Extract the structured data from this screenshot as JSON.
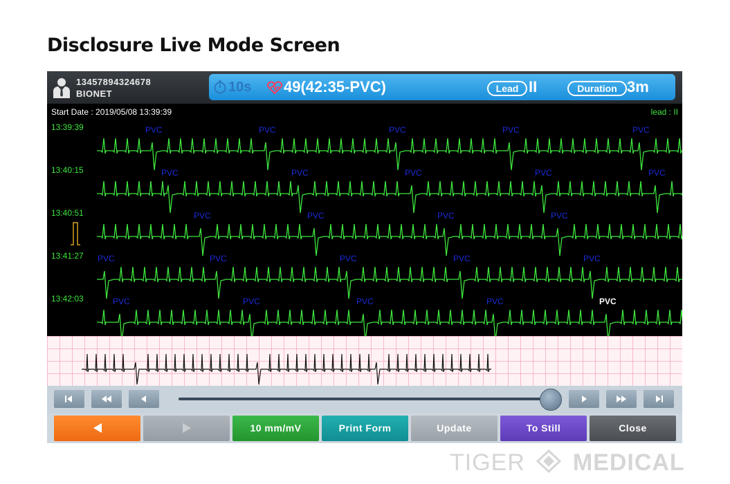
{
  "page": {
    "title": "Disclosure Live Mode Screen"
  },
  "header": {
    "patient_id": "13457894324678",
    "patient_name": "BIONET",
    "timer": "10s",
    "heart_rate": "49(42:35-PVC)",
    "lead_label": "Lead",
    "lead_value": "II",
    "duration_label": "Duration",
    "duration_value": "3m"
  },
  "ecg": {
    "start_date": "Start Date : 2019/05/08 13:39:39",
    "lead_indicator": "lead : II",
    "rows": [
      {
        "time": "13:39:39",
        "pvc_labels": [
          "PVC",
          "PVC",
          "PVC",
          "PVC",
          "PVC"
        ]
      },
      {
        "time": "13:40:15",
        "pvc_labels": [
          "PVC",
          "PVC",
          "PVC",
          "PVC",
          "PVC"
        ]
      },
      {
        "time": "13:40:51",
        "pvc_labels": [
          "PVC",
          "PVC",
          "PVC",
          "PVC"
        ]
      },
      {
        "time": "13:41:27",
        "pvc_labels": [
          "PVC",
          "PVC",
          "PVC",
          "PVC",
          "PVC"
        ]
      },
      {
        "time": "13:42:03",
        "pvc_labels": [
          "PVC",
          "PVC",
          "PVC",
          "PVC",
          "PVC"
        ]
      }
    ],
    "trace_color": "#3ee63e",
    "pvc_color": "#1a2bd8"
  },
  "navigation": {
    "buttons": [
      "first-icon",
      "rewind-icon",
      "step-back-icon",
      "step-forward-icon",
      "fast-forward-icon",
      "last-icon"
    ]
  },
  "buttons": {
    "gain": "10 mm/mV",
    "print": "Print Form",
    "update": "Update",
    "to_still": "To Still",
    "close": "Close"
  },
  "watermark": {
    "brand_left": "TIGER",
    "brand_right": "MEDICAL"
  }
}
